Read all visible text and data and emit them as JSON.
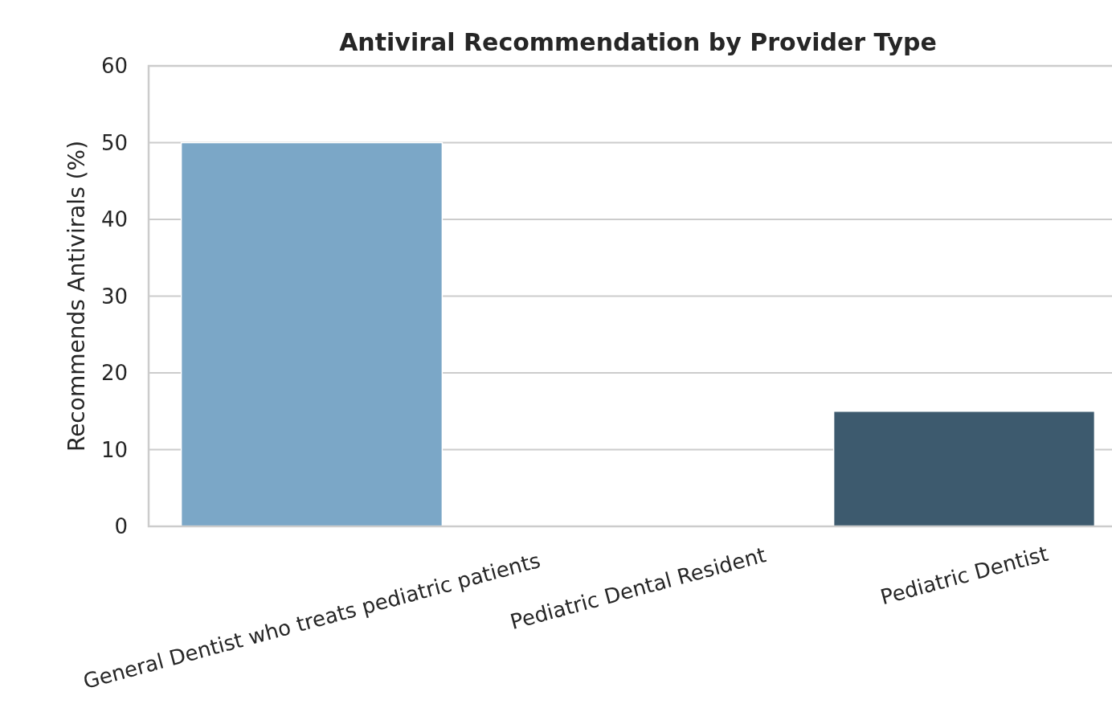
{
  "chart_data": {
    "type": "bar",
    "title": "Antiviral Recommendation by Provider Type",
    "ylabel": "Recommends Antivirals (%)",
    "categories": [
      "General Dentist who treats pediatric patients",
      "Pediatric Dental Resident",
      "Pediatric Dentist"
    ],
    "values": [
      50,
      0,
      15
    ],
    "colors": [
      "#7ba7c7",
      "#5a85a5",
      "#3d5a6e"
    ],
    "ylim": [
      0,
      60
    ],
    "yticks": [
      0,
      10,
      20,
      30,
      40,
      50,
      60
    ],
    "grid": "y"
  }
}
